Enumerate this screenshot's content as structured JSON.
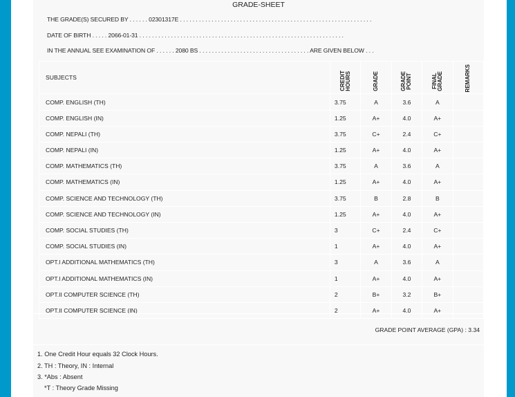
{
  "title": "GRADE-SHEET",
  "info": {
    "secured_by": "THE GRADE(S) SECURED BY . . . . . . 02301317E . . . . . . . . . . . . . . . . . . . . . . . . . . . . . . . . . . . . . . . . . . . . . . . . . . . . . . . . . . . . .",
    "dob": "DATE OF BIRTH . . . . . 2066-01-31 . . . . . . . . . . . . . . . . . . . . . . . . . . . . . . . . . . . . . . . . . . . . . . . . . . . . . . . . . . . . . . . . .",
    "exam": "IN THE ANNUAL SEE EXAMINATION OF . . . . . . 2080 BS . . . . . . . . . . . . . . . . . . . . . . . . . . . . . . . . . . . ARE GIVEN BELOW . . ."
  },
  "headers": {
    "subjects": "SUBJECTS",
    "credit": "CREDIT\nHOURS",
    "grade": "GRADE",
    "point": "GRADE\nPOINT",
    "final": "FINAL\nGRADE",
    "remarks": "REMARKS"
  },
  "rows": [
    [
      "COMP. ENGLISH (TH)",
      "3.75",
      "A",
      "3.6",
      "A"
    ],
    [
      "COMP. ENGLISH (IN)",
      "1.25",
      "A+",
      "4.0",
      "A+"
    ],
    [
      "COMP. NEPALI (TH)",
      "3.75",
      "C+",
      "2.4",
      "C+"
    ],
    [
      "COMP. NEPALI (IN)",
      "1.25",
      "A+",
      "4.0",
      "A+"
    ],
    [
      "COMP. MATHEMATICS (TH)",
      "3.75",
      "A",
      "3.6",
      "A"
    ],
    [
      "COMP. MATHEMATICS (IN)",
      "1.25",
      "A+",
      "4.0",
      "A+"
    ],
    [
      "COMP. SCIENCE AND TECHNOLOGY (TH)",
      "3.75",
      "B",
      "2.8",
      "B"
    ],
    [
      "COMP. SCIENCE AND TECHNOLOGY (IN)",
      "1.25",
      "A+",
      "4.0",
      "A+"
    ],
    [
      "COMP. SOCIAL STUDIES (TH)",
      "3",
      "C+",
      "2.4",
      "C+"
    ],
    [
      "COMP. SOCIAL STUDIES (IN)",
      "1",
      "A+",
      "4.0",
      "A+"
    ],
    [
      "OPT.I ADDITIONAL MATHEMATICS (TH)",
      "3",
      "A",
      "3.6",
      "A"
    ],
    [
      "OPT.I ADDITIONAL MATHEMATICS (IN)",
      "1",
      "A+",
      "4.0",
      "A+"
    ],
    [
      "OPT.II COMPUTER SCIENCE (TH)",
      "2",
      "B+",
      "3.2",
      "B+"
    ],
    [
      "OPT.II COMPUTER SCIENCE (IN)",
      "2",
      "A+",
      "4.0",
      "A+"
    ]
  ],
  "gpa": "GRADE POINT AVERAGE (GPA) : 3.34",
  "notes": [
    "1. One Credit Hour equals 32 Clock Hours.",
    "2. TH : Theory, IN : Internal",
    "3. *Abs : Absent",
    "*T : Theory Grade Missing"
  ],
  "colors": {
    "frame": "#0099cc",
    "panel": "#f8f8f8"
  }
}
